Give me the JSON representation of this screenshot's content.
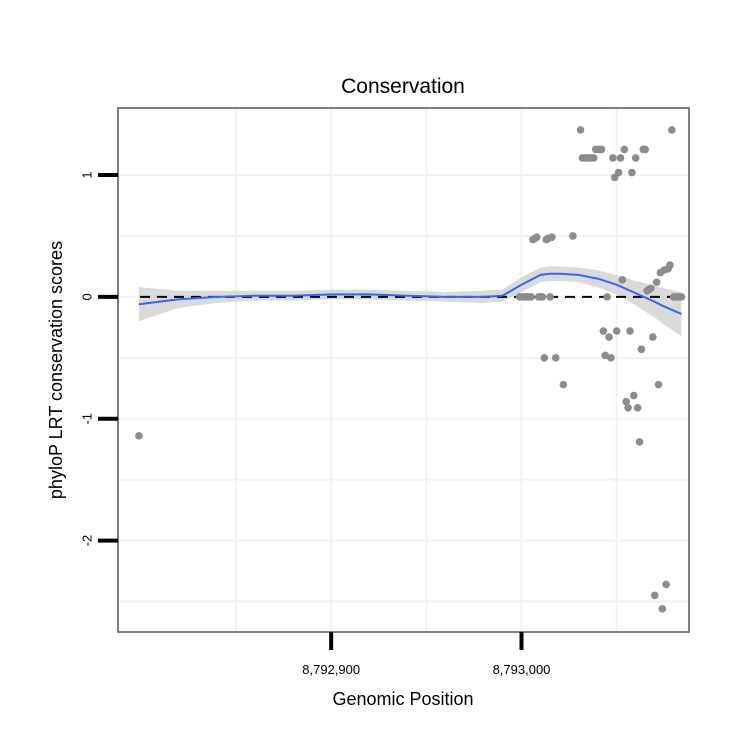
{
  "chart_data": {
    "type": "scatter",
    "title": "Conservation",
    "xlabel": "Genomic Position",
    "ylabel": "phyloP LRT conservation scores",
    "xlim": [
      8792788,
      8793088
    ],
    "ylim": [
      -2.75,
      1.55
    ],
    "x_ticks": [
      {
        "value": 8792900,
        "label": "8,792,900"
      },
      {
        "value": 8793000,
        "label": "8,793,000"
      }
    ],
    "y_ticks": [
      {
        "value": 1,
        "label": "1"
      },
      {
        "value": 0,
        "label": "0"
      },
      {
        "value": -1,
        "label": "-1"
      },
      {
        "value": -2,
        "label": "-2"
      }
    ],
    "x_minor_grid": [
      8792850,
      8792950,
      8793050
    ],
    "y_minor_grid": [
      0.5,
      -0.5,
      -1.5,
      -2.5
    ],
    "reference_line": {
      "y": 0,
      "style": "dashed"
    },
    "colors": {
      "points": "#8c8c8c",
      "smooth_line": "#3366ff",
      "ribbon": "#d3d3d3",
      "panel_border": "#7f7f7f",
      "grid": "#f2f2f2",
      "reference_line": "#000000"
    },
    "series": [
      {
        "name": "scores",
        "x": [
          8792799,
          8792999,
          8793000,
          8793001,
          8793002,
          8793003,
          8793004,
          8793005,
          8793006,
          8793007,
          8793008,
          8793009,
          8793010,
          8793011,
          8793012,
          8793013,
          8793014,
          8793015,
          8793016,
          8793018,
          8793022,
          8793027,
          8793031,
          8793032,
          8793033,
          8793034,
          8793035,
          8793036,
          8793037,
          8793038,
          8793039,
          8793040,
          8793041,
          8793042,
          8793043,
          8793044,
          8793045,
          8793046,
          8793047,
          8793048,
          8793049,
          8793050,
          8793051,
          8793052,
          8793053,
          8793054,
          8793055,
          8793056,
          8793057,
          8793058,
          8793059,
          8793060,
          8793061,
          8793062,
          8793063,
          8793064,
          8793065,
          8793066,
          8793067,
          8793068,
          8793069,
          8793070,
          8793071,
          8793072,
          8793073,
          8793074,
          8793075,
          8793076,
          8793077,
          8793078,
          8793079,
          8793080,
          8793081,
          8793082,
          8793083,
          8793084
        ],
        "y": [
          -1.14,
          0,
          0,
          0,
          0,
          0,
          0,
          0,
          0.47,
          0.48,
          0.49,
          0,
          0,
          0,
          -0.5,
          0.47,
          0.48,
          0,
          0.49,
          -0.5,
          -0.72,
          0.5,
          1.37,
          1.14,
          1.14,
          1.14,
          1.14,
          1.14,
          1.14,
          1.14,
          1.21,
          1.21,
          1.21,
          1.21,
          -0.28,
          -0.48,
          0,
          -0.33,
          -0.5,
          1.14,
          0.98,
          -0.28,
          1.02,
          1.14,
          0.14,
          1.21,
          -0.86,
          -0.91,
          -0.28,
          1.02,
          -0.81,
          1.14,
          -0.91,
          -1.19,
          -0.43,
          1.21,
          1.21,
          0.05,
          0.06,
          0.07,
          -0.33,
          -2.45,
          0.12,
          -0.72,
          0.2,
          -2.56,
          0.22,
          -2.36,
          0.23,
          0.26,
          1.37,
          0,
          0,
          0,
          0,
          0
        ]
      }
    ],
    "smooth": {
      "x": [
        8792799,
        8792820,
        8792840,
        8792860,
        8792880,
        8792900,
        8792920,
        8792940,
        8792960,
        8792980,
        8792990,
        8793000,
        8793010,
        8793015,
        8793020,
        8793030,
        8793040,
        8793050,
        8793060,
        8793070,
        8793075,
        8793084
      ],
      "y": [
        -0.06,
        -0.02,
        0.0,
        0.01,
        0.01,
        0.02,
        0.02,
        0.01,
        0.0,
        0.0,
        0.01,
        0.1,
        0.18,
        0.19,
        0.19,
        0.18,
        0.15,
        0.1,
        0.03,
        -0.04,
        -0.08,
        -0.14
      ],
      "se": [
        0.14,
        0.07,
        0.05,
        0.04,
        0.04,
        0.04,
        0.04,
        0.04,
        0.04,
        0.05,
        0.05,
        0.06,
        0.06,
        0.06,
        0.06,
        0.06,
        0.07,
        0.08,
        0.1,
        0.13,
        0.15,
        0.18
      ]
    }
  }
}
